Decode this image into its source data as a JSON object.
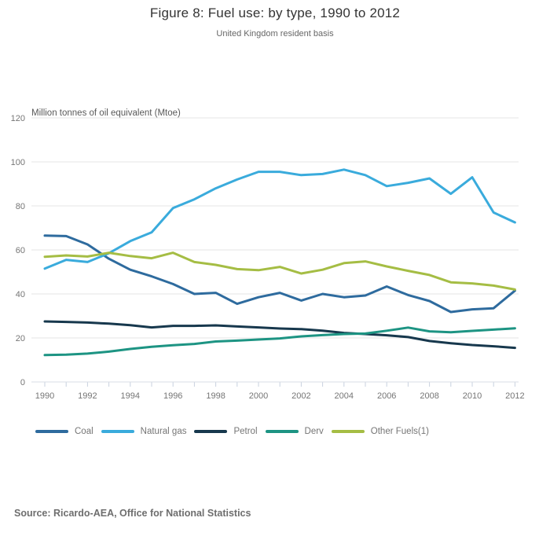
{
  "page": {
    "title": "Figure 8: Fuel use: by type, 1990 to 2012",
    "subtitle": "United Kingdom resident basis",
    "source": "Source: Ricardo-AEA, Office for National Statistics"
  },
  "chart_data": {
    "type": "line",
    "title": "Figure 8: Fuel use: by type, 1990 to 2012",
    "subtitle": "United Kingdom resident basis",
    "unit_label": "Million tonnes of oil equivalent (Mtoe)",
    "xlabel": "",
    "ylabel": "Million tonnes of oil equivalent (Mtoe)",
    "x": [
      1990,
      1991,
      1992,
      1993,
      1994,
      1995,
      1996,
      1997,
      1998,
      1999,
      2000,
      2001,
      2002,
      2003,
      2004,
      2005,
      2006,
      2007,
      2008,
      2009,
      2010,
      2011,
      2012
    ],
    "x_tick_labels": [
      "1990",
      "1992",
      "1994",
      "1996",
      "1998",
      "2000",
      "2002",
      "2004",
      "2006",
      "2008",
      "2010",
      "2012"
    ],
    "y_ticks": [
      0,
      20,
      40,
      60,
      80,
      100,
      120
    ],
    "ylim": [
      0,
      120
    ],
    "grid": true,
    "legend_position": "bottom",
    "series": [
      {
        "name": "Coal",
        "color": "#2e6b9e",
        "values": [
          66.5,
          66.3,
          62.5,
          56,
          51,
          48,
          44.5,
          40,
          40.5,
          35.5,
          38.5,
          40.5,
          37,
          40,
          38.5,
          39.3,
          43.4,
          39.5,
          36.8,
          31.8,
          33,
          33.5,
          41.5
        ]
      },
      {
        "name": "Natural gas",
        "color": "#3aabdc",
        "values": [
          51.5,
          55.5,
          54.5,
          58.5,
          64,
          68,
          79,
          83,
          88,
          92,
          95.5,
          95.5,
          94,
          94.5,
          96.5,
          94,
          89,
          90.5,
          92.5,
          85.5,
          93,
          77,
          72.5
        ]
      },
      {
        "name": "Petrol",
        "color": "#17384d",
        "values": [
          27.5,
          27.3,
          27,
          26.5,
          25.8,
          24.8,
          25.5,
          25.5,
          25.7,
          25.2,
          24.8,
          24.3,
          24,
          23.3,
          22.3,
          21.8,
          21.2,
          20.4,
          18.6,
          17.6,
          16.8,
          16.2,
          15.5
        ]
      },
      {
        "name": "Derv",
        "color": "#1d9483",
        "values": [
          12.2,
          12.4,
          12.9,
          13.8,
          15,
          16,
          16.7,
          17.3,
          18.4,
          18.8,
          19.3,
          19.8,
          20.7,
          21.3,
          21.8,
          22,
          23.3,
          24.7,
          23,
          22.6,
          23.2,
          23.8,
          24.4
        ]
      },
      {
        "name": "Other Fuels(1)",
        "color": "#a5bd44",
        "values": [
          56.9,
          57.5,
          57,
          58.7,
          57.2,
          56.2,
          58.7,
          54.5,
          53.2,
          51.3,
          50.8,
          52.3,
          49.3,
          51,
          54,
          54.8,
          52.5,
          50.5,
          48.6,
          45.3,
          44.8,
          43.8,
          42
        ]
      }
    ],
    "colors": {
      "gridline": "#e6e6e6",
      "zero_line": "#d8dde4",
      "tick_mark": "#c8d1df",
      "tick_label": "#757575"
    }
  }
}
